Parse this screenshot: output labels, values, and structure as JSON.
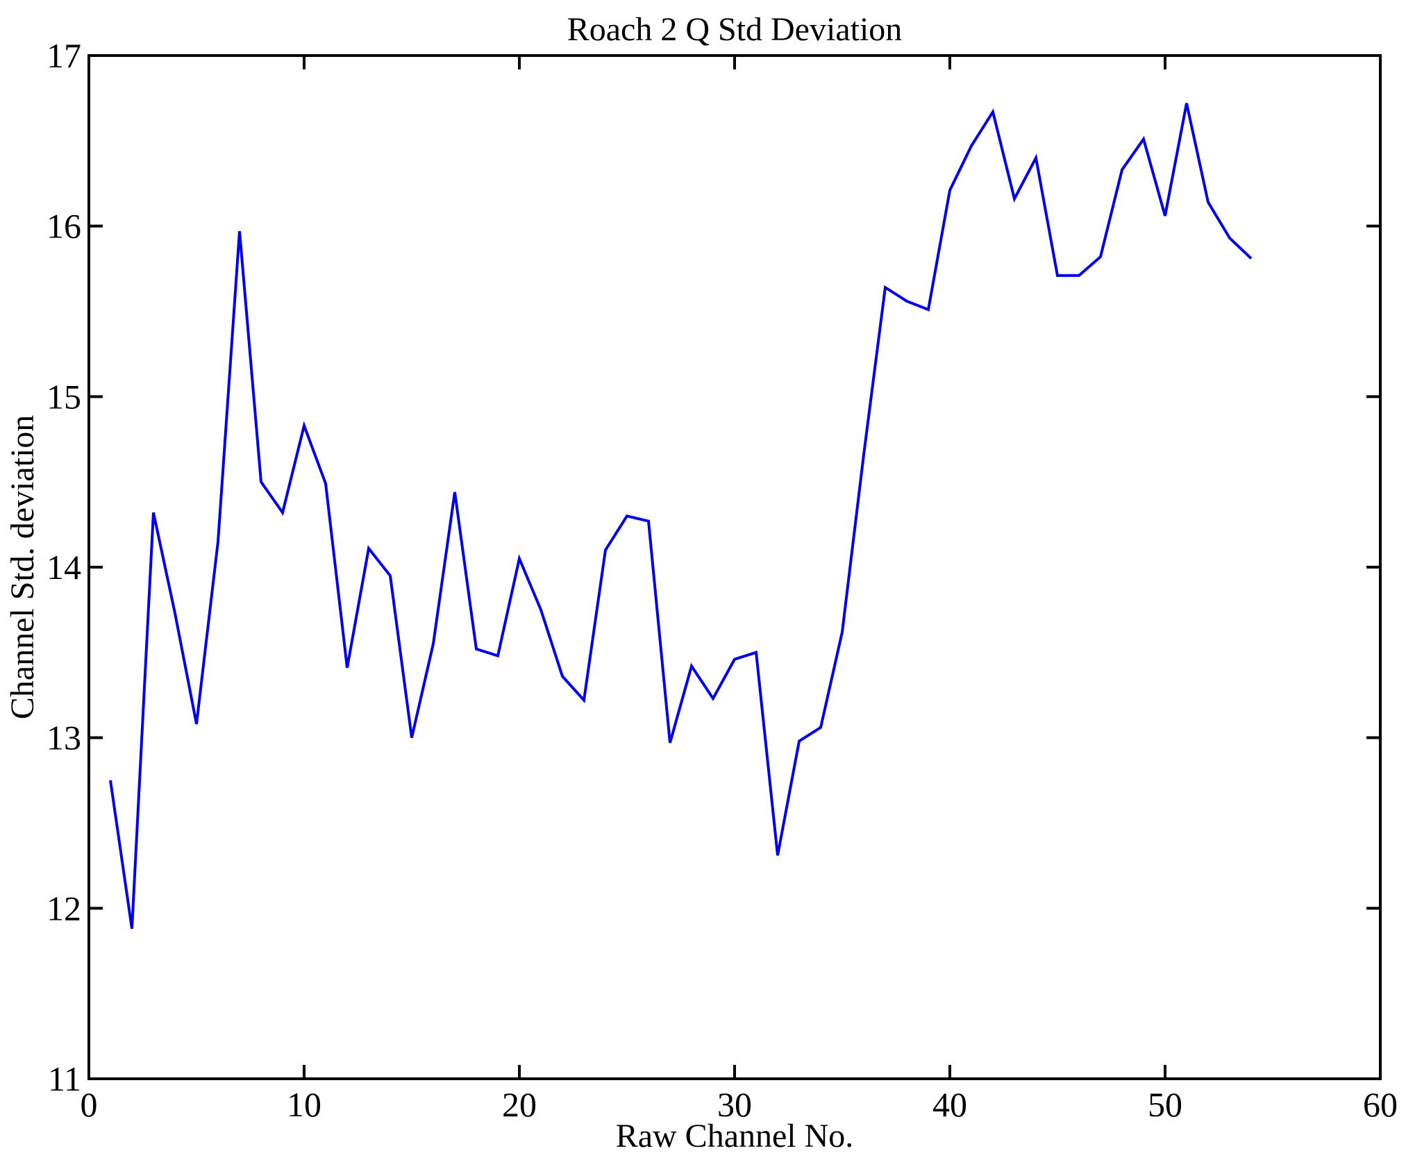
{
  "chart_data": {
    "type": "line",
    "title": "Roach 2 Q Std Deviation",
    "xlabel": "Raw Channel No.",
    "ylabel": "Channel Std. deviation",
    "xlim": [
      0,
      60
    ],
    "ylim": [
      11,
      17
    ],
    "x_ticks": [
      0,
      10,
      20,
      30,
      40,
      50,
      60
    ],
    "y_ticks": [
      11,
      12,
      13,
      14,
      15,
      16,
      17
    ],
    "grid": false,
    "legend": "none",
    "line_color": "#0000ee",
    "axis_color": "#000000",
    "background_color": "#ffffff",
    "series": [
      {
        "name": "Channel Std deviation",
        "x": [
          1,
          2,
          3,
          4,
          5,
          6,
          7,
          8,
          9,
          10,
          11,
          12,
          13,
          14,
          15,
          16,
          17,
          18,
          19,
          20,
          21,
          22,
          23,
          24,
          25,
          26,
          27,
          28,
          29,
          30,
          31,
          32,
          33,
          34,
          35,
          36,
          37,
          38,
          39,
          40,
          41,
          42,
          43,
          44,
          45,
          46,
          47,
          48,
          49,
          50,
          51,
          52,
          53,
          54
        ],
        "y": [
          12.75,
          11.88,
          14.32,
          13.73,
          13.08,
          14.15,
          15.97,
          14.5,
          14.32,
          14.83,
          14.49,
          13.41,
          14.11,
          13.95,
          13.0,
          13.55,
          14.44,
          13.52,
          13.48,
          14.05,
          13.75,
          13.36,
          13.22,
          14.1,
          14.3,
          14.27,
          12.97,
          13.42,
          13.23,
          13.46,
          13.5,
          12.31,
          12.98,
          13.06,
          13.62,
          14.66,
          15.64,
          15.56,
          15.51,
          16.21,
          16.47,
          16.67,
          16.16,
          16.4,
          15.71,
          15.71,
          15.82,
          16.33,
          16.51,
          16.06,
          16.72,
          16.14,
          15.93,
          15.81
        ]
      }
    ]
  }
}
